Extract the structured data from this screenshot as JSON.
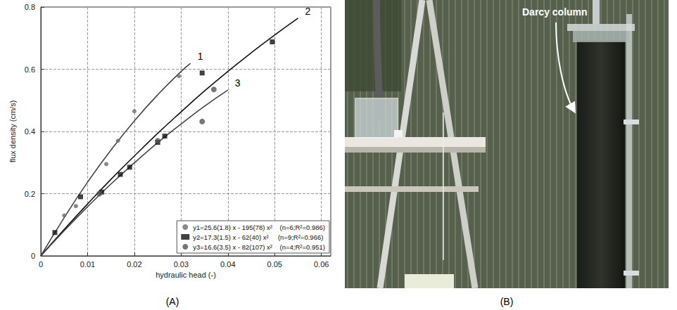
{
  "chart_data": {
    "type": "scatter",
    "xlabel": "hydraulic head (-)",
    "ylabel": "flux density (cm/s)",
    "xlim": [
      0,
      0.062
    ],
    "xticks": [
      0,
      0.01,
      0.02,
      0.03,
      0.04,
      0.05,
      0.06
    ],
    "ylim": [
      0,
      0.8
    ],
    "yticks": [
      0,
      0.2,
      0.4,
      0.6,
      0.8
    ],
    "grid": true,
    "legend": "lower right",
    "series": [
      {
        "name": "y1=25.6(1.8) x - 195(78) x²    (n=6;R²=0.986)",
        "color": "#6b6b6b",
        "marker": "circle",
        "x": [
          0.005,
          0.0075,
          0.014,
          0.0165,
          0.02,
          0.0295
        ],
        "values": [
          0.13,
          0.16,
          0.295,
          0.37,
          0.465,
          0.578
        ],
        "curve": {
          "label": "1",
          "color": "#444444",
          "x": [
            0,
            0.005,
            0.01,
            0.015,
            0.02,
            0.025,
            0.03,
            0.032
          ],
          "values": [
            0,
            0.123,
            0.237,
            0.34,
            0.434,
            0.518,
            0.593,
            0.619
          ]
        }
      },
      {
        "name": "y2=17.3(1.5) x - 62(40) x²     (n=9;R²=0.966)",
        "color": "#111111",
        "marker": "square",
        "x": [
          0.003,
          0.0085,
          0.013,
          0.017,
          0.019,
          0.025,
          0.0265,
          0.0345,
          0.0495
        ],
        "values": [
          0.075,
          0.19,
          0.205,
          0.262,
          0.285,
          0.365,
          0.385,
          0.588,
          0.688
        ],
        "curve": {
          "label": "2",
          "color": "#111111",
          "x": [
            0,
            0.005,
            0.01,
            0.015,
            0.02,
            0.025,
            0.03,
            0.035,
            0.04,
            0.045,
            0.05,
            0.055
          ],
          "values": [
            0,
            0.085,
            0.167,
            0.246,
            0.321,
            0.394,
            0.463,
            0.53,
            0.593,
            0.653,
            0.71,
            0.764
          ]
        }
      },
      {
        "name": "y3=16.6(3.5) x - 82(107) x²    (n=4;R²=0.951)",
        "color": "#555555",
        "marker": "circle",
        "x": [
          0.0125,
          0.025,
          0.0345,
          0.037
        ],
        "values": [
          0.2,
          0.37,
          0.432,
          0.535
        ],
        "curve": {
          "label": "3",
          "color": "#444444",
          "x": [
            0,
            0.005,
            0.01,
            0.015,
            0.02,
            0.025,
            0.03,
            0.035,
            0.04
          ],
          "values": [
            0,
            0.081,
            0.158,
            0.231,
            0.299,
            0.364,
            0.424,
            0.481,
            0.533
          ]
        }
      }
    ]
  },
  "panels": [
    {
      "label": "(A)"
    },
    {
      "label": "(B)",
      "annotation": "Darcy column"
    }
  ]
}
